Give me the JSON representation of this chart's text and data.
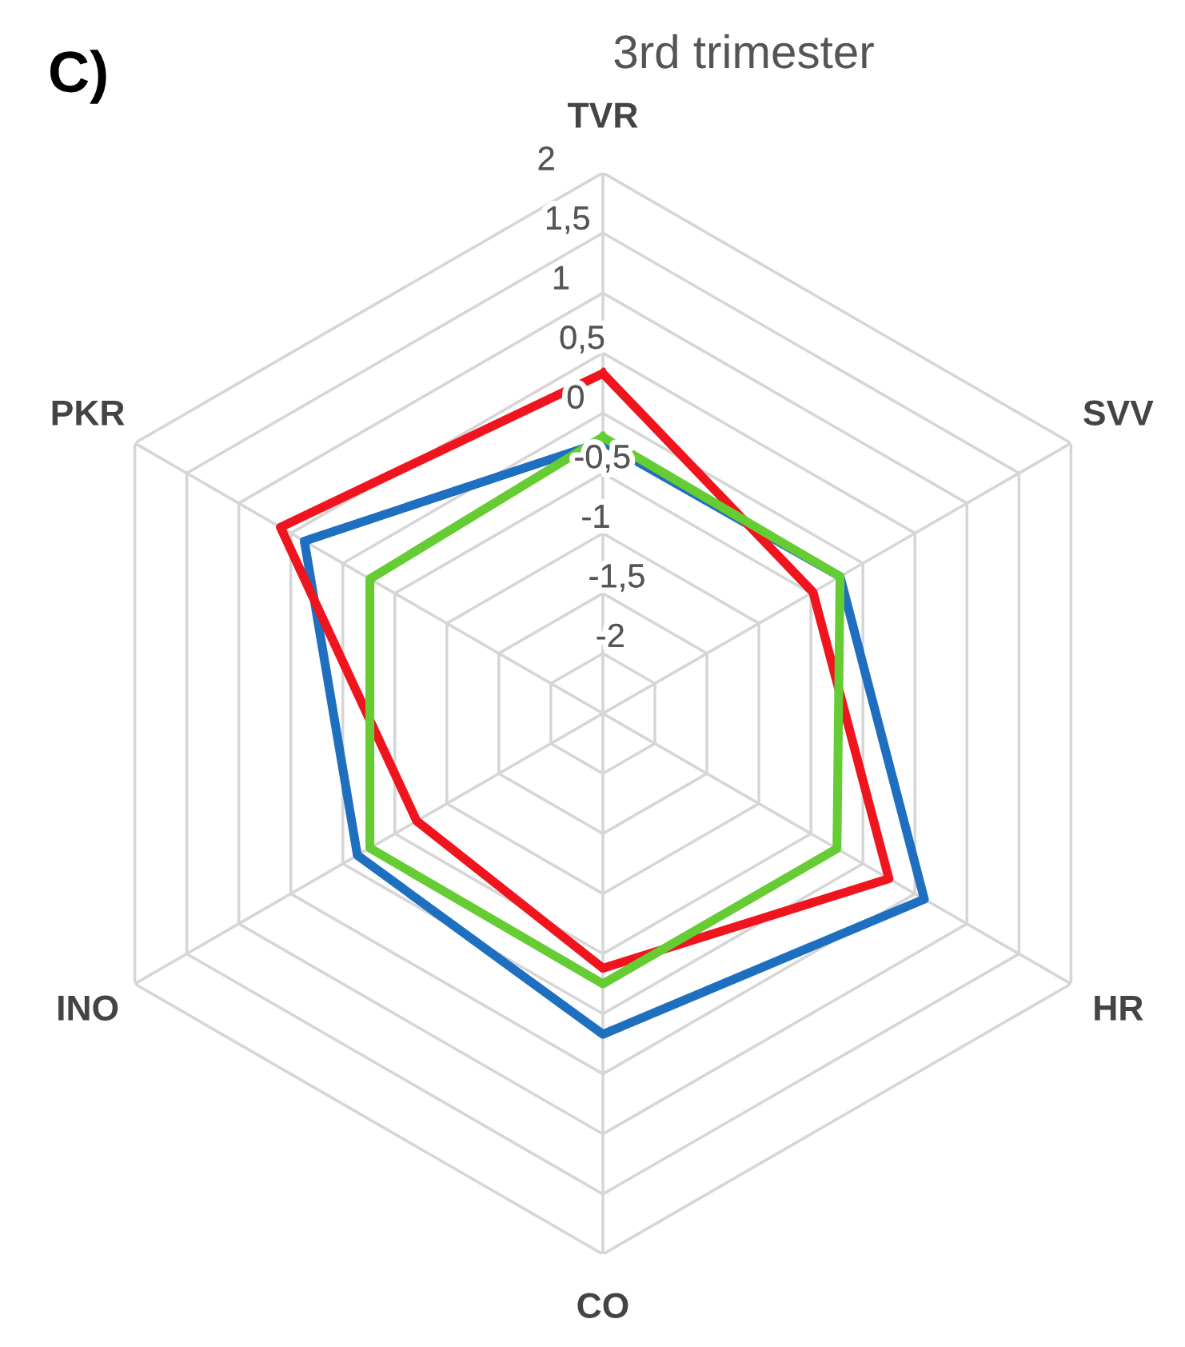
{
  "chart_data": {
    "type": "radar",
    "title": "3rd trimester",
    "annotations": [
      "C)"
    ],
    "categories": [
      "TVR",
      "SVV",
      "HR",
      "CO",
      "INO",
      "PKR"
    ],
    "series": [
      {
        "color": "#1f6fc0",
        "values": [
          -0.24,
          -0.22,
          0.59,
          0.17,
          -0.14,
          0.37
        ]
      },
      {
        "color": "#f0141e",
        "values": [
          0.33,
          -0.48,
          0.25,
          -0.38,
          -0.71,
          0.6
        ]
      },
      {
        "color": "#66cc33",
        "values": [
          -0.2,
          -0.22,
          -0.25,
          -0.25,
          -0.26,
          -0.26
        ]
      }
    ],
    "ylim": [
      -2.5,
      2
    ],
    "yticks": [
      {
        "value": -2,
        "label": "-2"
      },
      {
        "value": -1.5,
        "label": "-1,5"
      },
      {
        "value": -1,
        "label": "-1"
      },
      {
        "value": -0.5,
        "label": "-0,5"
      },
      {
        "value": 0,
        "label": "0"
      },
      {
        "value": 0.5,
        "label": "0,5"
      },
      {
        "value": 1,
        "label": "1"
      },
      {
        "value": 1.5,
        "label": "1,5"
      },
      {
        "value": 2,
        "label": "2"
      }
    ],
    "grid": true
  }
}
